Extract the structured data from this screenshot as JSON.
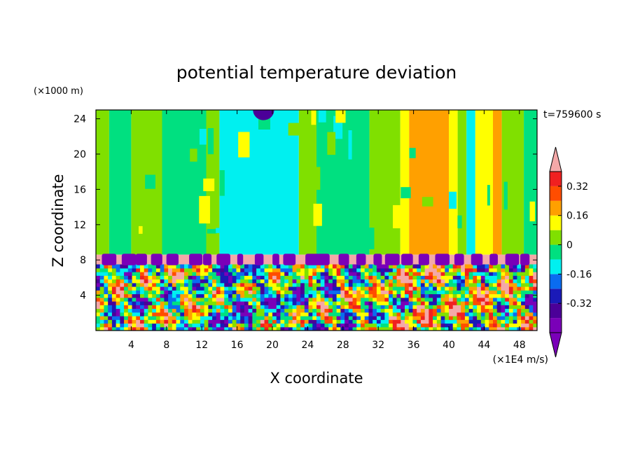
{
  "chart_data": {
    "type": "heatmap",
    "title": "potential temperature deviation",
    "xlabel": "X coordinate",
    "ylabel": "Z coordinate",
    "x_unit": "(×1E4 m/s)",
    "y_unit": "(×1000 m)",
    "time_label": "t=759600 s",
    "xlim": [
      0,
      50
    ],
    "ylim": [
      0,
      25
    ],
    "x_ticks": [
      4,
      8,
      12,
      16,
      20,
      24,
      28,
      32,
      36,
      40,
      44,
      48
    ],
    "y_ticks": [
      4,
      8,
      12,
      16,
      20,
      24
    ],
    "colorbar": {
      "levels": [
        -0.48,
        -0.4,
        -0.32,
        -0.24,
        -0.16,
        -0.08,
        0,
        0.08,
        0.16,
        0.24,
        0.32,
        0.4
      ],
      "labels": [
        "-0.32",
        "-0.16",
        "0",
        "0.16",
        "0.32"
      ],
      "label_values": [
        -0.32,
        -0.16,
        0,
        0.16,
        0.32
      ],
      "colors": [
        "#7a00b8",
        "#4b0098",
        "#1a1ab8",
        "#0a6cf0",
        "#00f0f0",
        "#00e080",
        "#80e000",
        "#ffff00",
        "#ffa000",
        "#ff4d00",
        "#f02020",
        "#f4a8a8"
      ],
      "extend": "both"
    },
    "upper_layer_columns": [
      {
        "x": [
          0,
          1.5
        ],
        "value": 0.04
      },
      {
        "x": [
          1.5,
          4
        ],
        "value": -0.05
      },
      {
        "x": [
          4,
          7.5
        ],
        "value": 0.04
      },
      {
        "x": [
          7.5,
          12.5
        ],
        "value": -0.05
      },
      {
        "x": [
          12.5,
          14
        ],
        "value": 0.04
      },
      {
        "x": [
          14,
          23
        ],
        "value": -0.12
      },
      {
        "x": [
          23,
          25
        ],
        "value": 0.04
      },
      {
        "x": [
          25,
          31
        ],
        "value": -0.05
      },
      {
        "x": [
          31,
          34.5
        ],
        "value": 0.04
      },
      {
        "x": [
          34.5,
          35.5
        ],
        "value": 0.12
      },
      {
        "x": [
          35.5,
          40
        ],
        "value": 0.2
      },
      {
        "x": [
          40,
          41
        ],
        "value": 0.12
      },
      {
        "x": [
          41,
          42
        ],
        "value": 0.04
      },
      {
        "x": [
          42,
          43
        ],
        "value": -0.12
      },
      {
        "x": [
          43,
          45
        ],
        "value": 0.12
      },
      {
        "x": [
          45,
          46
        ],
        "value": 0.2
      },
      {
        "x": [
          46,
          48.5
        ],
        "value": 0.04
      },
      {
        "x": [
          48.5,
          50
        ],
        "value": -0.05
      }
    ],
    "tropopause_band": {
      "z": [
        7.5,
        8.6
      ],
      "value": 0.45
    }
  }
}
